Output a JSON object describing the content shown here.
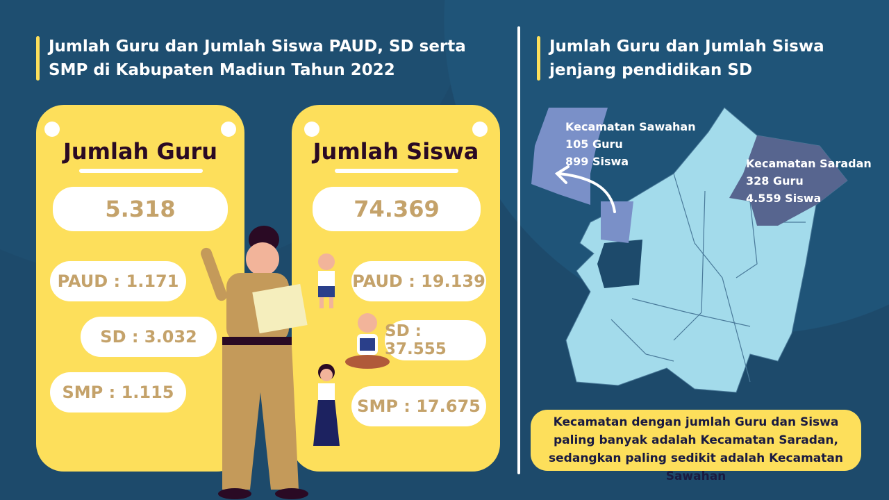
{
  "left_title": "Jumlah Guru dan Jumlah Siswa PAUD, SD serta SMP di Kabupaten Madiun Tahun 2022",
  "right_title": "Jumlah Guru dan Jumlah Siswa jenjang pendidikan SD",
  "guru": {
    "heading": "Jumlah Guru",
    "total": "5.318",
    "paud": "PAUD : 1.171",
    "sd": "SD : 3.032",
    "smp": "SMP : 1.115"
  },
  "siswa": {
    "heading": "Jumlah Siswa",
    "total": "74.369",
    "paud": "PAUD : 19.139",
    "sd": "SD : 37.555",
    "smp": "SMP : 17.675"
  },
  "map": {
    "sawahan": {
      "name": "Kecamatan Sawahan",
      "guru": "105 Guru",
      "siswa": "899 Siswa",
      "color": "#7a90c8"
    },
    "saradan": {
      "name": "Kecamatan Saradan",
      "guru": "328 Guru",
      "siswa": "4.559 Siswa",
      "color": "#57658f"
    },
    "base_color": "#a3dbeb"
  },
  "note": "Kecamatan dengan jumlah Guru dan Siswa paling banyak adalah Kecamatan Saradan, sedangkan paling sedikit adalah Kecamatan Sawahan",
  "colors": {
    "background": "#1d4a6b",
    "accent": "#fddf5b",
    "value_text": "#c4a26a"
  }
}
